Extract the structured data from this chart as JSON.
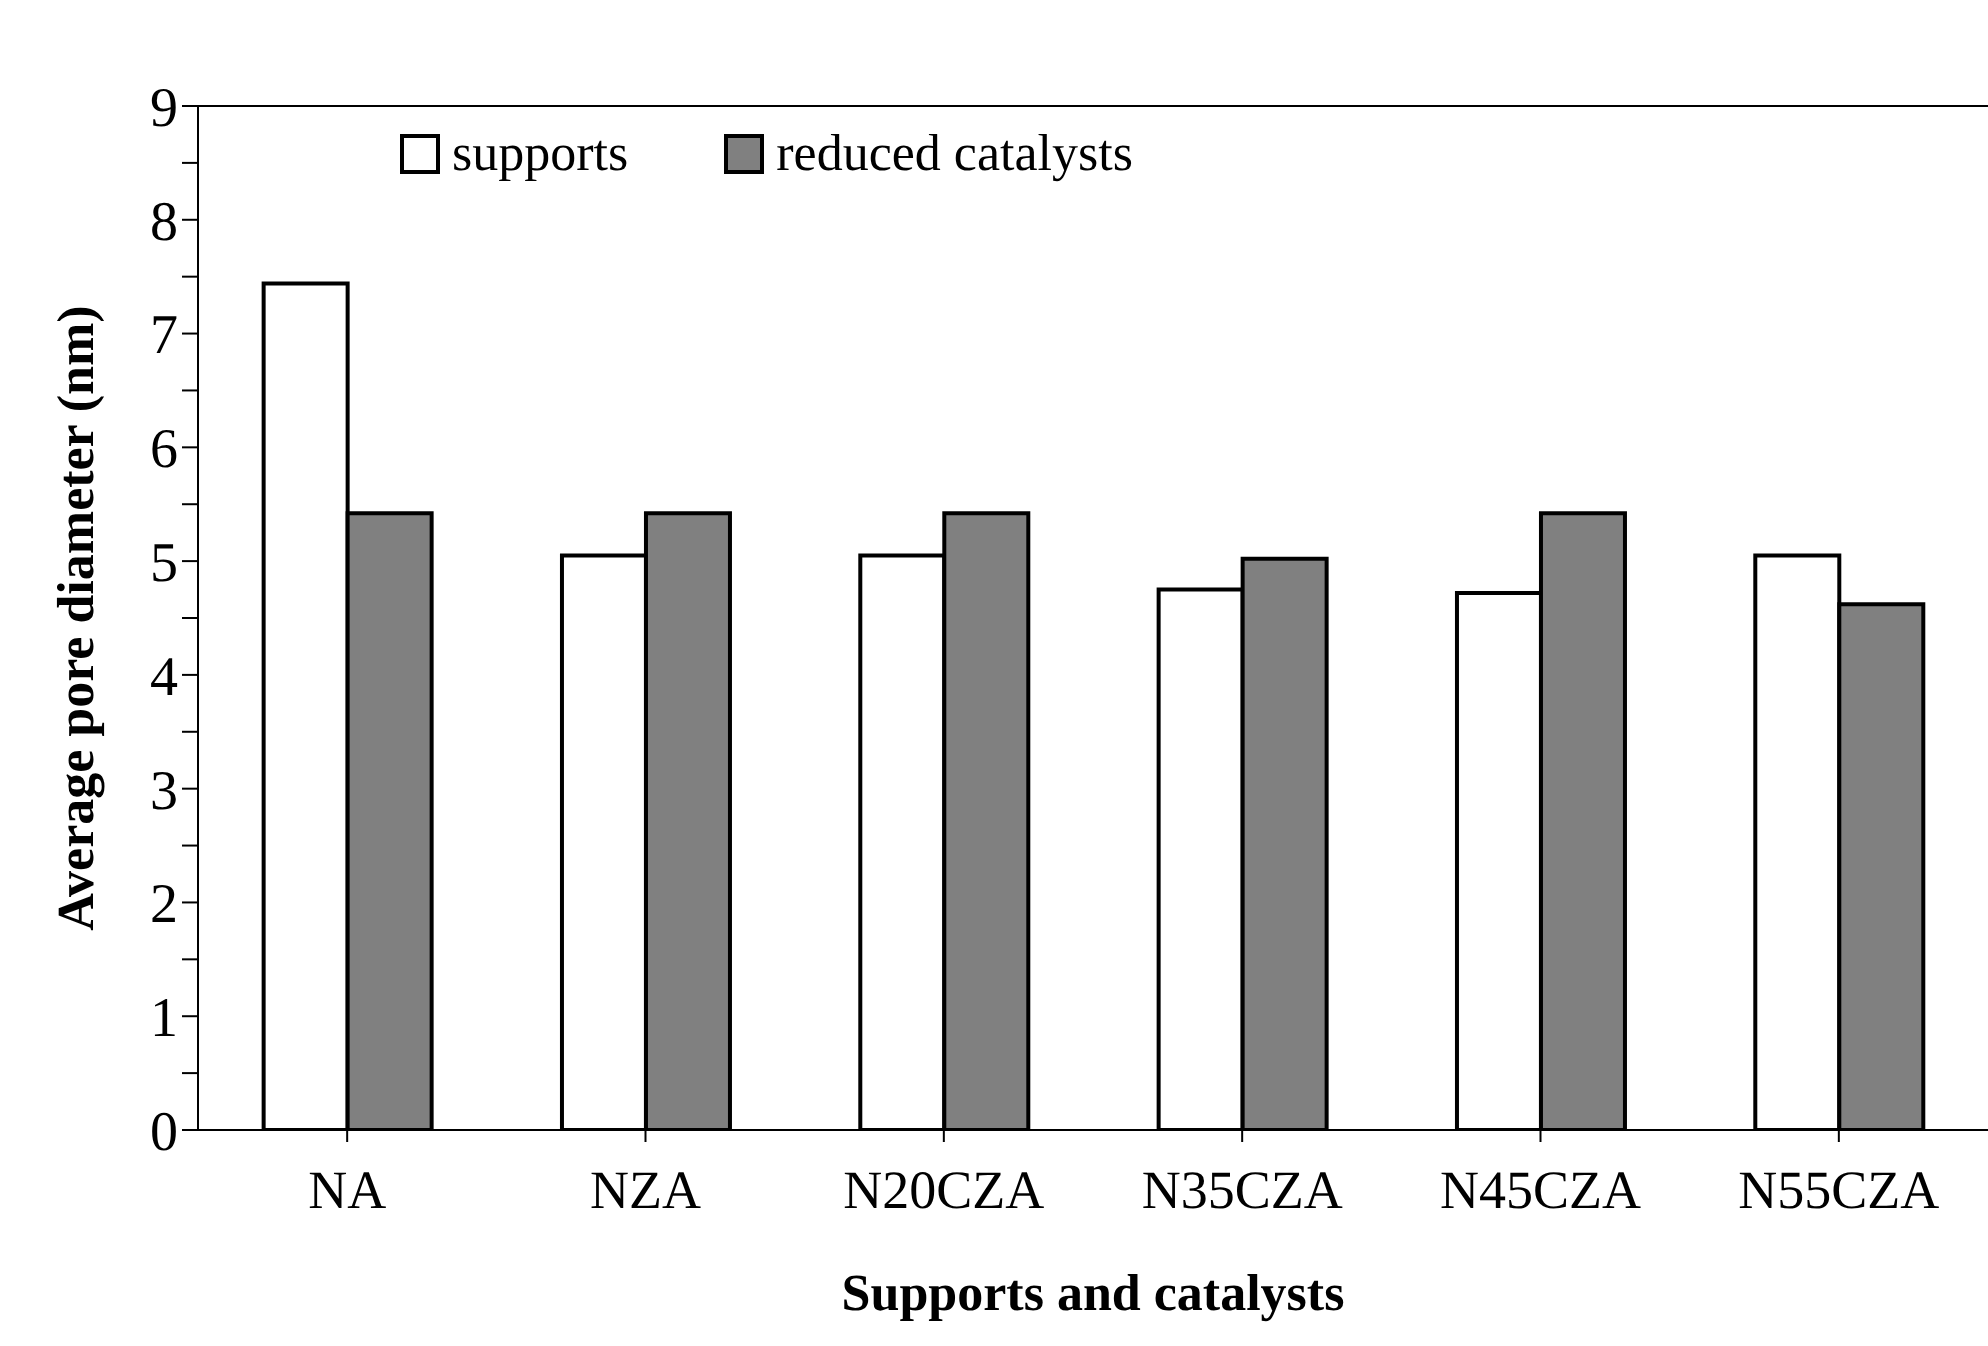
{
  "chart_data": {
    "type": "bar",
    "xlabel": "Supports and catalysts",
    "ylabel": "Average pore diameter (nm)",
    "categories": [
      "NA",
      "NZA",
      "N20CZA",
      "N35CZA",
      "N45CZA",
      "N55CZA"
    ],
    "series": [
      {
        "name": "supports",
        "color": "#ffffff",
        "values": [
          7.44,
          5.05,
          5.05,
          4.75,
          4.72,
          5.05
        ]
      },
      {
        "name": "reduced catalysts",
        "color": "#808080",
        "values": [
          5.42,
          5.42,
          5.42,
          5.02,
          5.42,
          4.62
        ]
      }
    ],
    "ylim": [
      0,
      9
    ],
    "yticks": [
      0,
      {
        "value": 0.5,
        "label": null
      },
      1,
      {
        "value": 1.5,
        "label": null
      },
      2,
      {
        "value": 2.5,
        "label": null
      },
      3,
      {
        "value": 3.5,
        "label": null
      },
      4,
      {
        "value": 4.5,
        "label": null
      },
      5,
      {
        "value": 5.5,
        "label": null
      },
      6,
      {
        "value": 6.5,
        "label": null
      },
      7,
      {
        "value": 7.5,
        "label": null
      },
      8,
      {
        "value": 8.5,
        "label": null
      },
      9
    ],
    "grid": false,
    "legend": "top"
  }
}
